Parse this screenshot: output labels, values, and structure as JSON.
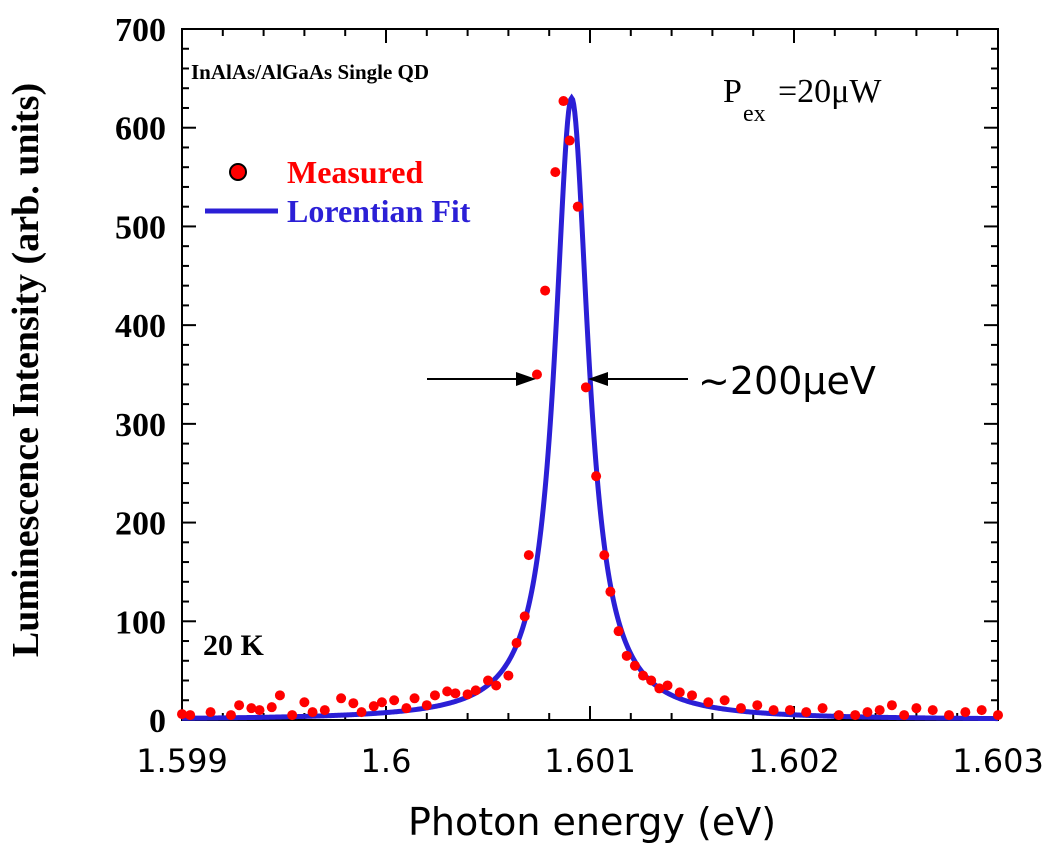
{
  "chart_data": {
    "type": "scatter",
    "title": "InAlAs/AlGaAs Single QD",
    "xlabel": "Photon energy (eV)",
    "ylabel": "Luminescence Intensity (arb. units)",
    "xlim": [
      1.599,
      1.603
    ],
    "ylim": [
      0,
      700
    ],
    "x_ticks": [
      1.599,
      1.6,
      1.601,
      1.602,
      1.603
    ],
    "x_tick_labels": [
      "1.599",
      "1.6",
      "1.601",
      "1.602",
      "1.603"
    ],
    "y_ticks": [
      0,
      100,
      200,
      300,
      400,
      500,
      600,
      700
    ],
    "y_tick_labels": [
      "0",
      "100",
      "200",
      "300",
      "400",
      "500",
      "600",
      "700"
    ],
    "grid": false,
    "legend_position": "top-left",
    "colors": {
      "measured": "#ff0000",
      "fit": "#2b1fd6",
      "axis": "#000000"
    },
    "annotations": {
      "power_main": "P",
      "power_sub": "ex",
      "power_value": "=20μW",
      "fwhm": "~200μeV",
      "temperature": "20 K"
    },
    "series": [
      {
        "name": "Measured",
        "kind": "scatter",
        "x": [
          1.599,
          1.59904,
          1.59914,
          1.59924,
          1.59928,
          1.59934,
          1.59938,
          1.59944,
          1.59948,
          1.59954,
          1.5996,
          1.59964,
          1.5997,
          1.59978,
          1.59984,
          1.59988,
          1.59994,
          1.59998,
          1.60004,
          1.6001,
          1.60014,
          1.6002,
          1.60024,
          1.6003,
          1.60034,
          1.6004,
          1.60044,
          1.6005,
          1.60054,
          1.6006,
          1.60064,
          1.60068,
          1.6007,
          1.60074,
          1.60078,
          1.60083,
          1.60087,
          1.6009,
          1.60094,
          1.60098,
          1.60103,
          1.60107,
          1.6011,
          1.60114,
          1.60118,
          1.60122,
          1.60126,
          1.6013,
          1.60134,
          1.60138,
          1.60144,
          1.6015,
          1.60158,
          1.60166,
          1.60174,
          1.60182,
          1.6019,
          1.60198,
          1.60206,
          1.60214,
          1.60222,
          1.6023,
          1.60236,
          1.60242,
          1.60248,
          1.60254,
          1.6026,
          1.60268,
          1.60276,
          1.60284,
          1.60292,
          1.603
        ],
        "y": [
          6,
          5,
          8,
          5,
          15,
          12,
          10,
          13,
          25,
          5,
          18,
          8,
          10,
          22,
          17,
          8,
          14,
          18,
          20,
          12,
          22,
          15,
          25,
          29,
          27,
          26,
          30,
          40,
          35,
          45,
          78,
          105,
          167,
          350,
          435,
          555,
          627,
          587,
          520,
          337,
          247,
          167,
          130,
          90,
          65,
          55,
          45,
          40,
          32,
          35,
          28,
          25,
          18,
          20,
          12,
          15,
          10,
          10,
          8,
          12,
          5,
          5,
          8,
          10,
          15,
          5,
          12,
          10,
          5,
          8,
          10,
          5
        ]
      },
      {
        "name": "Lorentian Fit",
        "kind": "line",
        "center": 1.60091,
        "fwhm": 0.0002,
        "amplitude": 630,
        "baseline": 0
      }
    ]
  }
}
